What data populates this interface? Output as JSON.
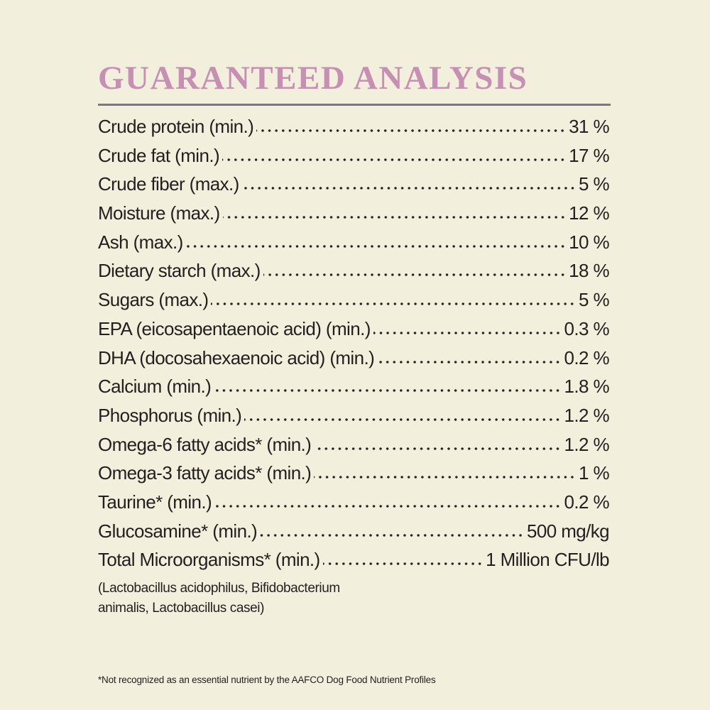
{
  "header": {
    "title": "GUARANTEED ANALYSIS"
  },
  "table": {
    "rows": [
      [
        "Crude protein (min.)",
        "31 %"
      ],
      [
        "Crude fat (min.)",
        "17 %"
      ],
      [
        "Crude fiber (max.)",
        "5 %"
      ],
      [
        "Moisture (max.)",
        "12 %"
      ],
      [
        "Ash (max.)",
        "10 %"
      ],
      [
        "Dietary starch (max.)",
        "18 %"
      ],
      [
        "Sugars (max.)",
        "5 %"
      ],
      [
        "EPA (eicosapentaenoic acid) (min.)",
        "0.3 %"
      ],
      [
        "DHA (docosahexaenoic acid) (min.)",
        "0.2 %"
      ],
      [
        "Calcium (min.)",
        "1.8 %"
      ],
      [
        "Phosphorus (min.)",
        "1.2 %"
      ],
      [
        "Omega-6 fatty acids* (min.)",
        "1.2 %"
      ],
      [
        "Omega-3 fatty acids* (min.)",
        "1 %"
      ],
      [
        "Taurine* (min.)",
        "0.2 %"
      ],
      [
        "Glucosamine* (min.)",
        "500 mg/kg"
      ],
      [
        "Total Microorganisms* (min.)",
        "1 Million CFU/lb"
      ]
    ]
  },
  "note": [
    "(Lactobacillus acidophilus, Bifidobacterium",
    "animalis, Lactobacillus casei)"
  ],
  "footnote": "*Not recognized as an essential nutrient by the AAFCO Dog Food Nutrient Profiles"
}
